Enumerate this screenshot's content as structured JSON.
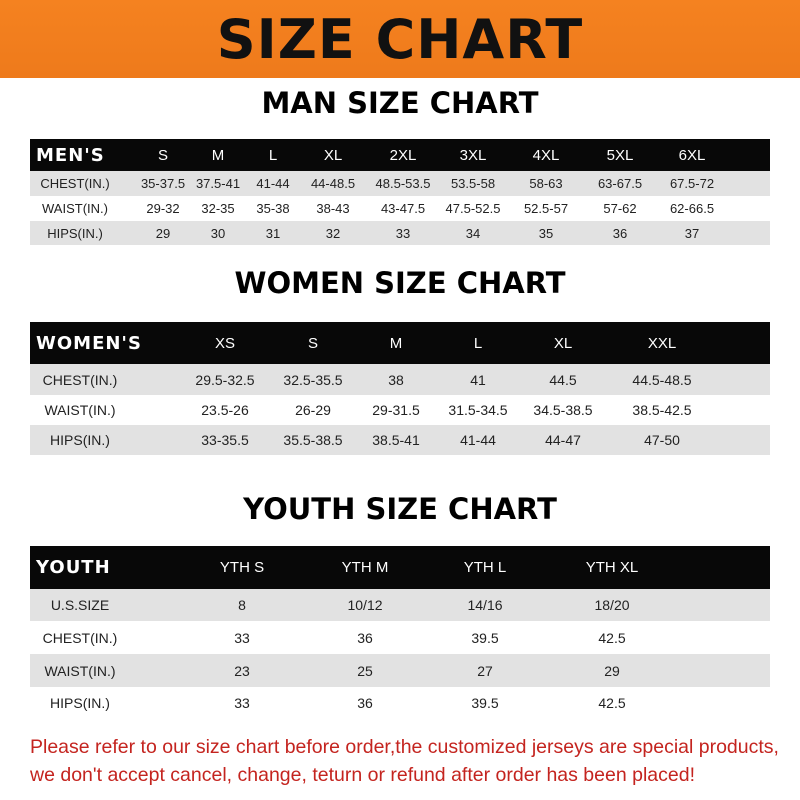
{
  "title": "SIZE CHART",
  "men": {
    "title": "MAN SIZE CHART",
    "header": "MEN'S",
    "sizes": [
      "S",
      "M",
      "L",
      "XL",
      "2XL",
      "3XL",
      "4XL",
      "5XL",
      "6XL"
    ],
    "rows": [
      {
        "label": "CHEST(IN.)",
        "values": [
          "35-37.5",
          "37.5-41",
          "41-44",
          "44-48.5",
          "48.5-53.5",
          "53.5-58",
          "58-63",
          "63-67.5",
          "67.5-72"
        ]
      },
      {
        "label": "WAIST(IN.)",
        "values": [
          "29-32",
          "32-35",
          "35-38",
          "38-43",
          "43-47.5",
          "47.5-52.5",
          "52.5-57",
          "57-62",
          "62-66.5"
        ]
      },
      {
        "label": "HIPS(IN.)",
        "values": [
          "29",
          "30",
          "31",
          "32",
          "33",
          "34",
          "35",
          "36",
          "37"
        ]
      }
    ]
  },
  "women": {
    "title": "WOMEN SIZE CHART",
    "header": "WOMEN'S",
    "sizes": [
      "XS",
      "S",
      "M",
      "L",
      "XL",
      "XXL"
    ],
    "rows": [
      {
        "label": "CHEST(IN.)",
        "values": [
          "29.5-32.5",
          "32.5-35.5",
          "38",
          "41",
          "44.5",
          "44.5-48.5"
        ]
      },
      {
        "label": "WAIST(IN.)",
        "values": [
          "23.5-26",
          "26-29",
          "29-31.5",
          "31.5-34.5",
          "34.5-38.5",
          "38.5-42.5"
        ]
      },
      {
        "label": "HIPS(IN.)",
        "values": [
          "33-35.5",
          "35.5-38.5",
          "38.5-41",
          "41-44",
          "44-47",
          "47-50"
        ]
      }
    ]
  },
  "youth": {
    "title": "YOUTH SIZE CHART",
    "header": "YOUTH",
    "sizes": [
      "YTH S",
      "YTH M",
      "YTH L",
      "YTH XL"
    ],
    "rows": [
      {
        "label": "U.S.SIZE",
        "values": [
          "8",
          "10/12",
          "14/16",
          "18/20"
        ]
      },
      {
        "label": "CHEST(IN.)",
        "values": [
          "33",
          "36",
          "39.5",
          "42.5"
        ]
      },
      {
        "label": "WAIST(IN.)",
        "values": [
          "23",
          "25",
          "27",
          "29"
        ]
      },
      {
        "label": "HIPS(IN.)",
        "values": [
          "33",
          "36",
          "39.5",
          "42.5"
        ]
      }
    ]
  },
  "footer": {
    "line1": "Please refer to our size chart before order,the customized jerseys are special products,",
    "line2": "we don't accept cancel, change, teturn or refund after order has been placed!"
  }
}
